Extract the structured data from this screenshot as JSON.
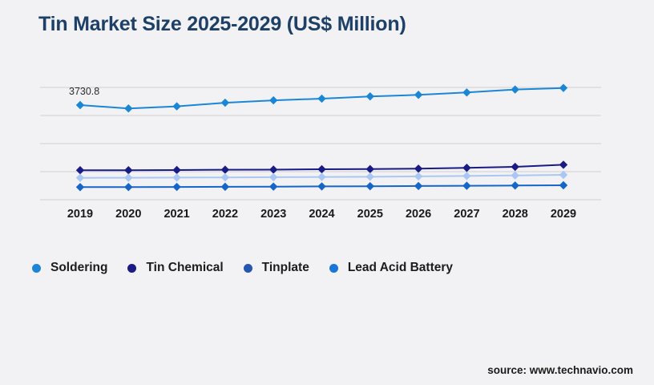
{
  "title": "Tin Market Size 2025-2029 (US$ Million)",
  "source_label": "source: www.technavio.com",
  "colors": {
    "background": "#f2f2f4",
    "title_text": "#1e3f66",
    "gridline": "#d7d7d9",
    "axis_label_text": "#1a1a1a",
    "annotation_text": "#2b2b2b"
  },
  "chart_data": {
    "type": "line",
    "title": "Tin Market Size 2025-2029 (US$ Million)",
    "xlabel": "",
    "ylabel": "",
    "units": "US$ Million",
    "grid": true,
    "gridline_count": 5,
    "y_axis_labels_visible": false,
    "legend_position": "bottom",
    "categories": [
      "2019",
      "2020",
      "2021",
      "2022",
      "2023",
      "2024",
      "2025",
      "2026",
      "2027",
      "2028",
      "2029"
    ],
    "series": [
      {
        "name": "Soldering",
        "line_color": "#1c86d6",
        "legend_color": "#1c86d6",
        "values": [
          3730.8,
          3610,
          3685,
          3815,
          3900,
          3960,
          4040,
          4095,
          4180,
          4285,
          4340
        ]
      },
      {
        "name": "Tin Chemical",
        "line_color": "#1b1b85",
        "legend_color": "#1b1b85",
        "values": [
          1410,
          1410,
          1418,
          1428,
          1432,
          1445,
          1450,
          1465,
          1495,
          1530,
          1605
        ]
      },
      {
        "name": "Tinplate",
        "line_color": "#a9c7f2",
        "legend_color": "#2457b0",
        "values": [
          1140,
          1142,
          1148,
          1155,
          1162,
          1170,
          1178,
          1190,
          1205,
          1225,
          1245
        ]
      },
      {
        "name": "Lead Acid Battery",
        "line_color": "#1566c8",
        "legend_color": "#1976d8",
        "values": [
          808,
          810,
          815,
          820,
          826,
          833,
          840,
          848,
          856,
          865,
          874
        ]
      }
    ],
    "annotations": [
      {
        "series": "Soldering",
        "x": "2019",
        "text": "3730.8"
      }
    ]
  }
}
